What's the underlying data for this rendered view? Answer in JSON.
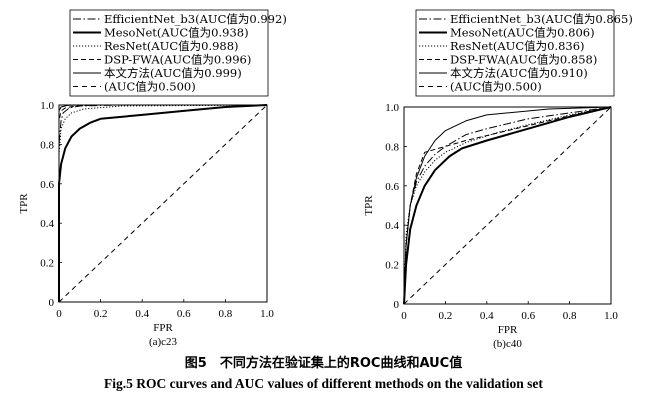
{
  "figure": {
    "caption_cn": "图5　不同方法在验证集上的ROC曲线和AUC值",
    "caption_en": "Fig.5   ROC curves and AUC values of different methods on the validation set"
  },
  "chart_data": [
    {
      "type": "line",
      "subplot_label": "(a)c23",
      "xlabel": "FPR",
      "ylabel": "TPR",
      "xlim": [
        0,
        1
      ],
      "ylim": [
        0,
        1
      ],
      "xticks": [
        "0",
        "0.2",
        "0.4",
        "0.6",
        "0.8",
        "1.0"
      ],
      "yticks": [
        "0",
        "0.2",
        "0.4",
        "0.6",
        "0.8",
        "1.0"
      ],
      "grid": false,
      "legend_position": "top",
      "series": [
        {
          "name": "EfficientNet_b3(AUC值为0.992)",
          "style": "dashdot",
          "points": [
            [
              0,
              0
            ],
            [
              0,
              0.8
            ],
            [
              0.01,
              0.92
            ],
            [
              0.02,
              0.96
            ],
            [
              0.05,
              0.985
            ],
            [
              0.1,
              0.995
            ],
            [
              0.3,
              1
            ],
            [
              1,
              1
            ]
          ]
        },
        {
          "name": "MesoNet(AUC值为0.938)",
          "style": "thick",
          "points": [
            [
              0,
              0
            ],
            [
              0,
              0.6
            ],
            [
              0.01,
              0.7
            ],
            [
              0.03,
              0.78
            ],
            [
              0.06,
              0.84
            ],
            [
              0.1,
              0.88
            ],
            [
              0.15,
              0.91
            ],
            [
              0.2,
              0.93
            ],
            [
              0.4,
              0.95
            ],
            [
              0.6,
              0.97
            ],
            [
              0.8,
              0.99
            ],
            [
              1,
              1
            ]
          ]
        },
        {
          "name": "ResNet(AUC值为0.988)",
          "style": "dotted",
          "points": [
            [
              0,
              0
            ],
            [
              0,
              0.75
            ],
            [
              0.01,
              0.88
            ],
            [
              0.03,
              0.93
            ],
            [
              0.06,
              0.96
            ],
            [
              0.12,
              0.98
            ],
            [
              0.3,
              0.995
            ],
            [
              1,
              1
            ]
          ]
        },
        {
          "name": "DSP-FWA(AUC值为0.996)",
          "style": "dashed",
          "points": [
            [
              0,
              0
            ],
            [
              0,
              0.92
            ],
            [
              0.01,
              0.97
            ],
            [
              0.03,
              0.985
            ],
            [
              0.08,
              0.995
            ],
            [
              0.2,
              1
            ],
            [
              1,
              1
            ]
          ]
        },
        {
          "name": "本文方法(AUC值为0.999)",
          "style": "solid",
          "points": [
            [
              0,
              0
            ],
            [
              0,
              0.97
            ],
            [
              0.01,
              0.99
            ],
            [
              0.04,
              0.998
            ],
            [
              0.1,
              1
            ],
            [
              1,
              1
            ]
          ]
        },
        {
          "name": "(AUC值为0.500)",
          "style": "longdash",
          "points": [
            [
              0,
              0
            ],
            [
              1,
              1
            ]
          ]
        }
      ]
    },
    {
      "type": "line",
      "subplot_label": "(b)c40",
      "xlabel": "FPR",
      "ylabel": "TPR",
      "xlim": [
        0,
        1
      ],
      "ylim": [
        0,
        1
      ],
      "xticks": [
        "0",
        "0.2",
        "0.4",
        "0.6",
        "0.8",
        "1.0"
      ],
      "yticks": [
        "0",
        "0.2",
        "0.4",
        "0.6",
        "0.8",
        "1.0"
      ],
      "grid": false,
      "legend_position": "top",
      "series": [
        {
          "name": "EfficientNet_b3(AUC值为0.865)",
          "style": "dashdot",
          "points": [
            [
              0,
              0
            ],
            [
              0.01,
              0.3
            ],
            [
              0.03,
              0.5
            ],
            [
              0.06,
              0.62
            ],
            [
              0.1,
              0.7
            ],
            [
              0.15,
              0.76
            ],
            [
              0.2,
              0.8
            ],
            [
              0.3,
              0.86
            ],
            [
              0.4,
              0.89
            ],
            [
              0.6,
              0.94
            ],
            [
              0.8,
              0.97
            ],
            [
              1,
              1
            ]
          ]
        },
        {
          "name": "MesoNet(AUC值为0.806)",
          "style": "thick",
          "points": [
            [
              0,
              0
            ],
            [
              0.01,
              0.2
            ],
            [
              0.03,
              0.38
            ],
            [
              0.06,
              0.5
            ],
            [
              0.1,
              0.6
            ],
            [
              0.15,
              0.68
            ],
            [
              0.22,
              0.75
            ],
            [
              0.28,
              0.79
            ],
            [
              0.4,
              0.83
            ],
            [
              0.6,
              0.89
            ],
            [
              0.8,
              0.95
            ],
            [
              1,
              1
            ]
          ]
        },
        {
          "name": "ResNet(AUC值为0.836)",
          "style": "dotted",
          "points": [
            [
              0,
              0
            ],
            [
              0.01,
              0.35
            ],
            [
              0.03,
              0.5
            ],
            [
              0.06,
              0.6
            ],
            [
              0.1,
              0.67
            ],
            [
              0.15,
              0.73
            ],
            [
              0.2,
              0.77
            ],
            [
              0.3,
              0.82
            ],
            [
              0.45,
              0.87
            ],
            [
              0.6,
              0.91
            ],
            [
              0.8,
              0.96
            ],
            [
              1,
              1
            ]
          ]
        },
        {
          "name": "DSP-FWA(AUC值为0.858)",
          "style": "dashed",
          "points": [
            [
              0,
              0
            ],
            [
              0.01,
              0.3
            ],
            [
              0.03,
              0.5
            ],
            [
              0.06,
              0.66
            ],
            [
              0.1,
              0.77
            ],
            [
              0.2,
              0.8
            ],
            [
              0.3,
              0.83
            ],
            [
              0.5,
              0.88
            ],
            [
              0.7,
              0.93
            ],
            [
              0.9,
              0.98
            ],
            [
              1,
              1
            ]
          ]
        },
        {
          "name": "本文方法(AUC值为0.910)",
          "style": "solid",
          "points": [
            [
              0,
              0
            ],
            [
              0.01,
              0.3
            ],
            [
              0.03,
              0.5
            ],
            [
              0.06,
              0.64
            ],
            [
              0.1,
              0.75
            ],
            [
              0.15,
              0.83
            ],
            [
              0.2,
              0.88
            ],
            [
              0.3,
              0.93
            ],
            [
              0.4,
              0.96
            ],
            [
              0.5,
              0.97
            ],
            [
              0.7,
              0.99
            ],
            [
              1,
              1
            ]
          ]
        },
        {
          "name": "(AUC值为0.500)",
          "style": "longdash",
          "points": [
            [
              0,
              0
            ],
            [
              1,
              1
            ]
          ]
        }
      ]
    }
  ]
}
